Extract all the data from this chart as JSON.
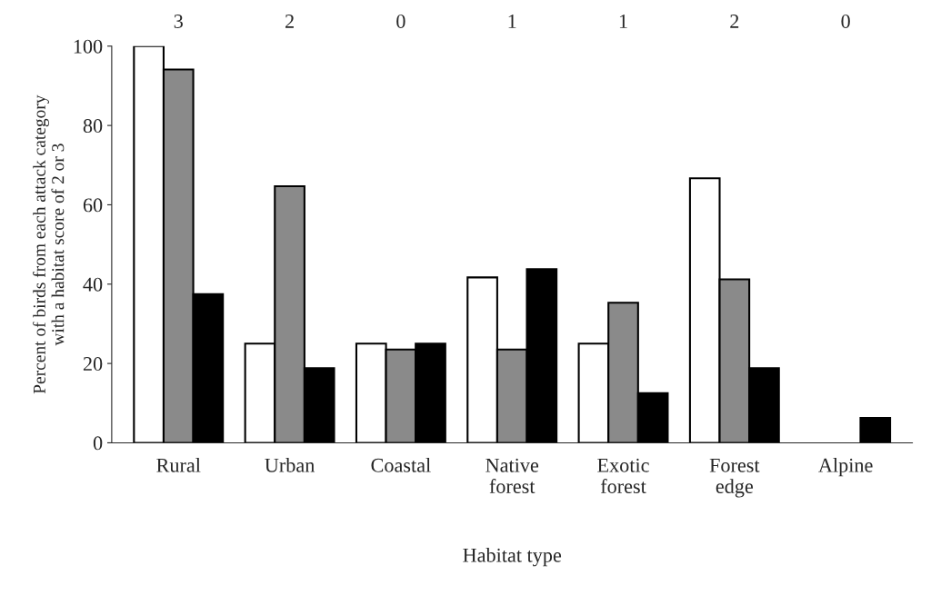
{
  "chart_data": {
    "type": "bar",
    "xlabel": "Habitat type",
    "ylabel": "Percent of birds from each attack category\nwith a habitat score of 2 or 3",
    "categories": [
      "Rural",
      "Urban",
      "Coastal",
      "Native\nforest",
      "Exotic\nforest",
      "Forest\nedge",
      "Alpine"
    ],
    "series": [
      {
        "color": "#ffffff",
        "values": [
          100,
          25,
          25,
          41.7,
          25,
          66.7,
          null
        ]
      },
      {
        "color": "#8a8a8a",
        "values": [
          94.1,
          64.7,
          23.5,
          23.5,
          35.3,
          41.2,
          null
        ]
      },
      {
        "color": "#000000",
        "values": [
          37.5,
          18.8,
          25,
          43.8,
          12.5,
          18.8,
          6.3
        ]
      }
    ],
    "annotations": [
      "3",
      "2",
      "0",
      "1",
      "1",
      "2",
      "0"
    ],
    "ylim": [
      0,
      100
    ],
    "yticks": [
      0,
      20,
      40,
      60,
      80,
      100
    ],
    "grid": false,
    "legend": false
  }
}
